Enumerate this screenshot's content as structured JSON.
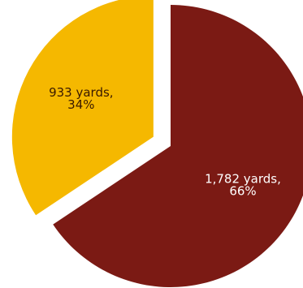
{
  "chart_data": {
    "type": "pie",
    "title": "",
    "slices": [
      {
        "value": 1782,
        "percent": 66,
        "label_line1": "1,782 yards,",
        "label_line2": "66%",
        "color": "#7b1a14",
        "label_color": "#ffffff",
        "exploded": false
      },
      {
        "value": 933,
        "percent": 34,
        "label_line1": "933 yards,",
        "label_line2": "34%",
        "color": "#f5b800",
        "label_color": "#3a1a00",
        "exploded": true
      }
    ],
    "start_angle_degrees_clockwise_from_top": 0,
    "legend": "none"
  }
}
